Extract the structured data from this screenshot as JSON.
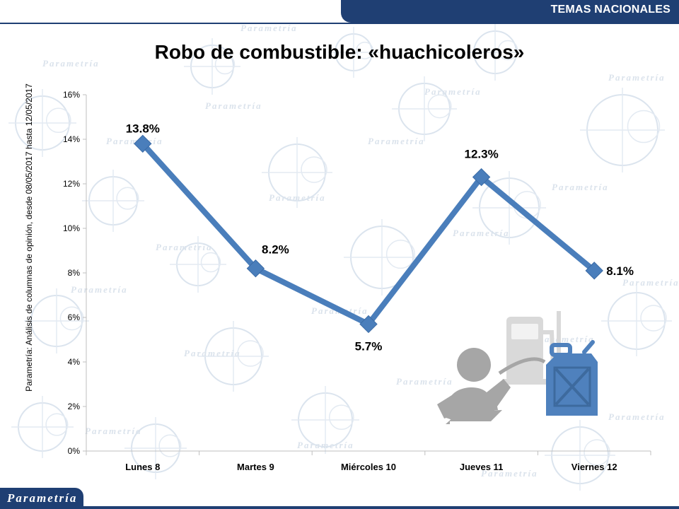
{
  "header": {
    "section_label": "TEMAS NACIONALES"
  },
  "title": "Robo de combustible: «huachicoleros»",
  "source_note": "Parametría: Análisis de columnas de opinión, desde 08/05/2017 hasta 12/05/2017",
  "logo": {
    "text": "Parametría"
  },
  "watermark_text": "Parametría",
  "illustration": {
    "icon": "fuel-theft-illustration",
    "colors": {
      "person": "#a6a6a6",
      "pump": "#d9d9d9",
      "jerrycan": "#4f81bd"
    }
  },
  "colors": {
    "line": "#4a7ebb",
    "banner": "#1f3f73",
    "axis": "#bfbfbf"
  },
  "chart_data": {
    "type": "line",
    "categories": [
      "Lunes 8",
      "Martes 9",
      "Miércoles 10",
      "Jueves 11",
      "Viernes 12"
    ],
    "series": [
      {
        "values": [
          13.8,
          8.2,
          5.7,
          12.3,
          8.1
        ]
      }
    ],
    "data_labels": [
      "13.8%",
      "8.2%",
      "5.7%",
      "12.3%",
      "8.1%"
    ],
    "ylim": [
      0,
      16
    ],
    "yticks": [
      "0%",
      "2%",
      "4%",
      "6%",
      "8%",
      "10%",
      "12%",
      "14%",
      "16%"
    ],
    "grid": false,
    "legend": "none"
  }
}
